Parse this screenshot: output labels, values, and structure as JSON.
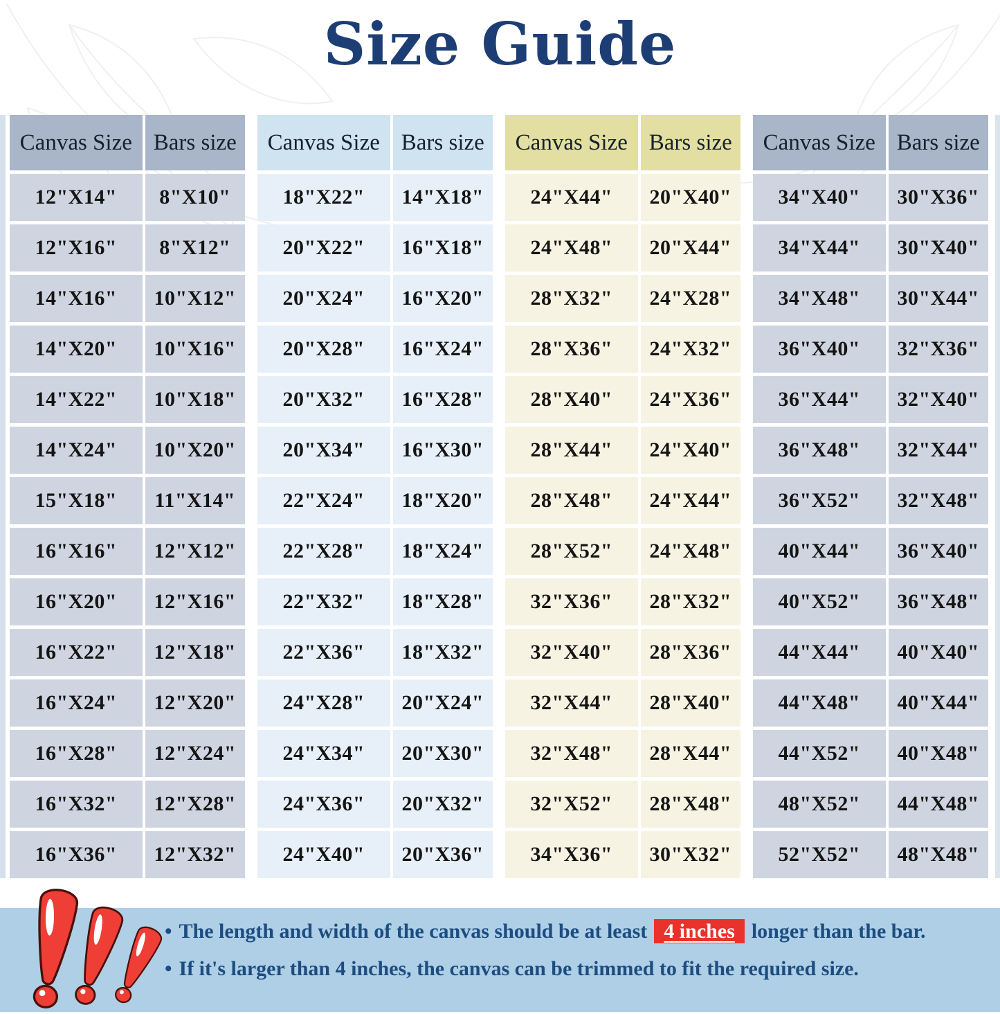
{
  "title": "Size Guide",
  "columns": [
    "Canvas Size",
    "Bars size"
  ],
  "tables": [
    {
      "theme": "slate",
      "colors": {
        "header": "#a9b5c8",
        "body": "#ced5e0"
      },
      "rows": [
        [
          "12\"X14\"",
          "8\"X10\""
        ],
        [
          "12\"X16\"",
          "8\"X12\""
        ],
        [
          "14\"X16\"",
          "10\"X12\""
        ],
        [
          "14\"X20\"",
          "10\"X16\""
        ],
        [
          "14\"X22\"",
          "10\"X18\""
        ],
        [
          "14\"X24\"",
          "10\"X20\""
        ],
        [
          "15\"X18\"",
          "11\"X14\""
        ],
        [
          "16\"X16\"",
          "12\"X12\""
        ],
        [
          "16\"X20\"",
          "12\"X16\""
        ],
        [
          "16\"X22\"",
          "12\"X18\""
        ],
        [
          "16\"X24\"",
          "12\"X20\""
        ],
        [
          "16\"X28\"",
          "12\"X24\""
        ],
        [
          "16\"X32\"",
          "12\"X28\""
        ],
        [
          "16\"X36\"",
          "12\"X32\""
        ]
      ]
    },
    {
      "theme": "blue",
      "colors": {
        "header": "#cfe3f0",
        "body": "#e7f0f8"
      },
      "rows": [
        [
          "18\"X22\"",
          "14\"X18\""
        ],
        [
          "20\"X22\"",
          "16\"X18\""
        ],
        [
          "20\"X24\"",
          "16\"X20\""
        ],
        [
          "20\"X28\"",
          "16\"X24\""
        ],
        [
          "20\"X32\"",
          "16\"X28\""
        ],
        [
          "20\"X34\"",
          "16\"X30\""
        ],
        [
          "22\"X24\"",
          "18\"X20\""
        ],
        [
          "22\"X28\"",
          "18\"X24\""
        ],
        [
          "22\"X32\"",
          "18\"X28\""
        ],
        [
          "22\"X36\"",
          "18\"X32\""
        ],
        [
          "24\"X28\"",
          "20\"X24\""
        ],
        [
          "24\"X34\"",
          "20\"X30\""
        ],
        [
          "24\"X36\"",
          "20\"X32\""
        ],
        [
          "24\"X40\"",
          "20\"X36\""
        ]
      ]
    },
    {
      "theme": "cream",
      "colors": {
        "header": "#e3dfa2",
        "body": "#f6f3e2"
      },
      "rows": [
        [
          "24\"X44\"",
          "20\"X40\""
        ],
        [
          "24\"X48\"",
          "20\"X44\""
        ],
        [
          "28\"X32\"",
          "24\"X28\""
        ],
        [
          "28\"X36\"",
          "24\"X32\""
        ],
        [
          "28\"X40\"",
          "24\"X36\""
        ],
        [
          "28\"X44\"",
          "24\"X40\""
        ],
        [
          "28\"X48\"",
          "24\"X44\""
        ],
        [
          "28\"X52\"",
          "24\"X48\""
        ],
        [
          "32\"X36\"",
          "28\"X32\""
        ],
        [
          "32\"X40\"",
          "28\"X36\""
        ],
        [
          "32\"X44\"",
          "28\"X40\""
        ],
        [
          "32\"X48\"",
          "28\"X44\""
        ],
        [
          "32\"X52\"",
          "28\"X48\""
        ],
        [
          "34\"X36\"",
          "30\"X32\""
        ]
      ]
    },
    {
      "theme": "slate",
      "colors": {
        "header": "#a9b5c8",
        "body": "#ced5e0"
      },
      "rows": [
        [
          "34\"X40\"",
          "30\"X36\""
        ],
        [
          "34\"X44\"",
          "30\"X40\""
        ],
        [
          "34\"X48\"",
          "30\"X44\""
        ],
        [
          "36\"X40\"",
          "32\"X36\""
        ],
        [
          "36\"X44\"",
          "32\"X40\""
        ],
        [
          "36\"X48\"",
          "32\"X44\""
        ],
        [
          "36\"X52\"",
          "32\"X48\""
        ],
        [
          "40\"X44\"",
          "36\"X40\""
        ],
        [
          "40\"X52\"",
          "36\"X48\""
        ],
        [
          "44\"X44\"",
          "40\"X40\""
        ],
        [
          "44\"X48\"",
          "40\"X44\""
        ],
        [
          "44\"X52\"",
          "40\"X48\""
        ],
        [
          "48\"X52\"",
          "44\"X48\""
        ],
        [
          "52\"X52\"",
          "48\"X48\""
        ]
      ]
    }
  ],
  "notes": {
    "bullet": "•",
    "note1_pre": "The length and width of the canvas should be at least",
    "note1_highlight": "4 inches",
    "note1_post": "longer than the bar.",
    "note2": "If it's larger than 4 inches, the canvas can be trimmed to fit the required size."
  },
  "colors": {
    "title": "#1d3e75",
    "note_text": "#1d4d80",
    "highlight_bg": "#e9322b",
    "highlight_text": "#ffffff",
    "band_bg": "#aecfe6",
    "exclamation_red": "#ee3e36"
  }
}
